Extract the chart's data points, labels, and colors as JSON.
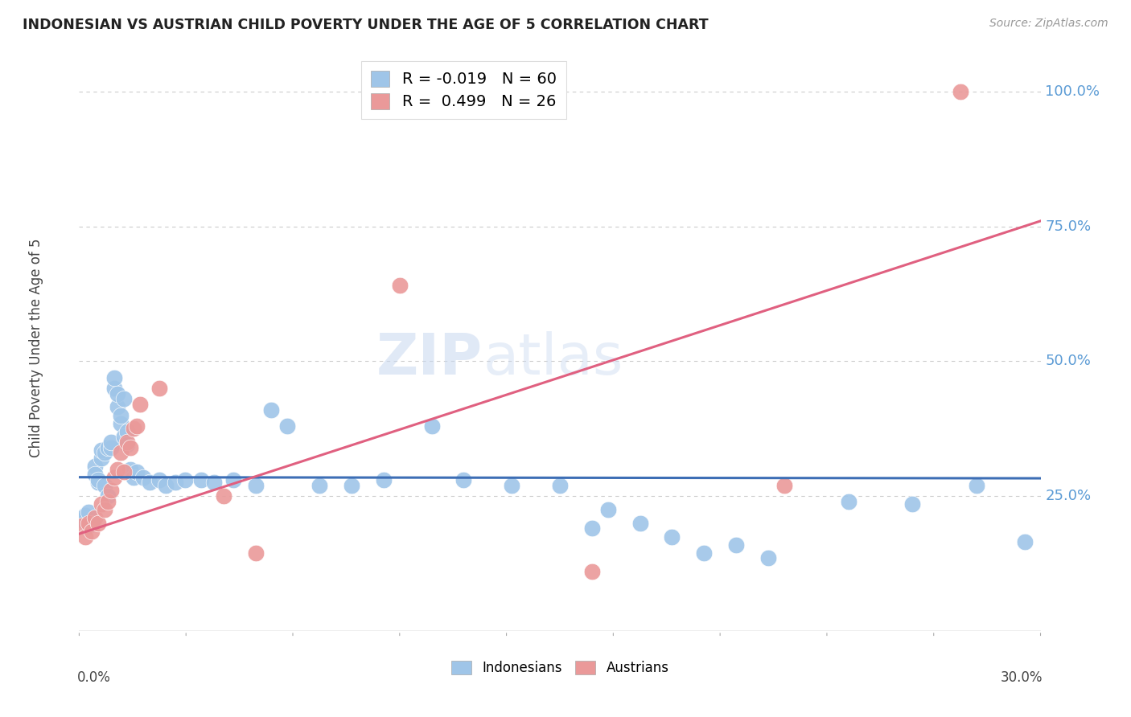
{
  "title": "INDONESIAN VS AUSTRIAN CHILD POVERTY UNDER THE AGE OF 5 CORRELATION CHART",
  "source": "Source: ZipAtlas.com",
  "ylabel": "Child Poverty Under the Age of 5",
  "ytick_labels": [
    "100.0%",
    "75.0%",
    "50.0%",
    "25.0%"
  ],
  "ytick_values": [
    1.0,
    0.75,
    0.5,
    0.25
  ],
  "indonesian_color": "#9fc5e8",
  "austrian_color": "#ea9999",
  "indonesian_line_color": "#3d6eb5",
  "austrian_line_color": "#e06080",
  "watermark_zip": "ZIP",
  "watermark_atlas": "atlas",
  "indonesian_N": 60,
  "austrian_N": 26,
  "indonesian_R": -0.019,
  "austrian_R": 0.499,
  "xmin": 0.0,
  "xmax": 0.3,
  "ymin": 0.0,
  "ymax": 1.05,
  "indo_line_y0": 0.285,
  "indo_line_y1": 0.283,
  "aust_line_y0": 0.18,
  "aust_line_y1": 0.76,
  "indonesian_points": [
    [
      0.001,
      0.205
    ],
    [
      0.002,
      0.215
    ],
    [
      0.003,
      0.195
    ],
    [
      0.003,
      0.22
    ],
    [
      0.004,
      0.2
    ],
    [
      0.005,
      0.305
    ],
    [
      0.005,
      0.29
    ],
    [
      0.006,
      0.275
    ],
    [
      0.006,
      0.28
    ],
    [
      0.007,
      0.32
    ],
    [
      0.007,
      0.335
    ],
    [
      0.008,
      0.27
    ],
    [
      0.008,
      0.33
    ],
    [
      0.009,
      0.25
    ],
    [
      0.009,
      0.34
    ],
    [
      0.01,
      0.34
    ],
    [
      0.01,
      0.35
    ],
    [
      0.011,
      0.45
    ],
    [
      0.011,
      0.47
    ],
    [
      0.012,
      0.415
    ],
    [
      0.012,
      0.44
    ],
    [
      0.013,
      0.385
    ],
    [
      0.013,
      0.4
    ],
    [
      0.014,
      0.43
    ],
    [
      0.014,
      0.36
    ],
    [
      0.015,
      0.37
    ],
    [
      0.015,
      0.345
    ],
    [
      0.016,
      0.3
    ],
    [
      0.017,
      0.285
    ],
    [
      0.018,
      0.295
    ],
    [
      0.02,
      0.285
    ],
    [
      0.022,
      0.275
    ],
    [
      0.025,
      0.28
    ],
    [
      0.027,
      0.27
    ],
    [
      0.03,
      0.275
    ],
    [
      0.033,
      0.28
    ],
    [
      0.038,
      0.28
    ],
    [
      0.042,
      0.275
    ],
    [
      0.048,
      0.28
    ],
    [
      0.055,
      0.27
    ],
    [
      0.06,
      0.41
    ],
    [
      0.065,
      0.38
    ],
    [
      0.075,
      0.27
    ],
    [
      0.085,
      0.27
    ],
    [
      0.095,
      0.28
    ],
    [
      0.11,
      0.38
    ],
    [
      0.12,
      0.28
    ],
    [
      0.135,
      0.27
    ],
    [
      0.15,
      0.27
    ],
    [
      0.16,
      0.19
    ],
    [
      0.165,
      0.225
    ],
    [
      0.175,
      0.2
    ],
    [
      0.185,
      0.175
    ],
    [
      0.195,
      0.145
    ],
    [
      0.205,
      0.16
    ],
    [
      0.215,
      0.135
    ],
    [
      0.24,
      0.24
    ],
    [
      0.26,
      0.235
    ],
    [
      0.28,
      0.27
    ],
    [
      0.295,
      0.165
    ]
  ],
  "austrian_points": [
    [
      0.001,
      0.195
    ],
    [
      0.002,
      0.175
    ],
    [
      0.003,
      0.2
    ],
    [
      0.004,
      0.185
    ],
    [
      0.005,
      0.21
    ],
    [
      0.006,
      0.2
    ],
    [
      0.007,
      0.235
    ],
    [
      0.008,
      0.225
    ],
    [
      0.009,
      0.24
    ],
    [
      0.01,
      0.26
    ],
    [
      0.011,
      0.285
    ],
    [
      0.012,
      0.3
    ],
    [
      0.013,
      0.33
    ],
    [
      0.014,
      0.295
    ],
    [
      0.015,
      0.35
    ],
    [
      0.016,
      0.34
    ],
    [
      0.017,
      0.375
    ],
    [
      0.018,
      0.38
    ],
    [
      0.019,
      0.42
    ],
    [
      0.025,
      0.45
    ],
    [
      0.045,
      0.25
    ],
    [
      0.055,
      0.145
    ],
    [
      0.1,
      0.64
    ],
    [
      0.16,
      0.11
    ],
    [
      0.22,
      0.27
    ],
    [
      0.275,
      1.0
    ]
  ]
}
